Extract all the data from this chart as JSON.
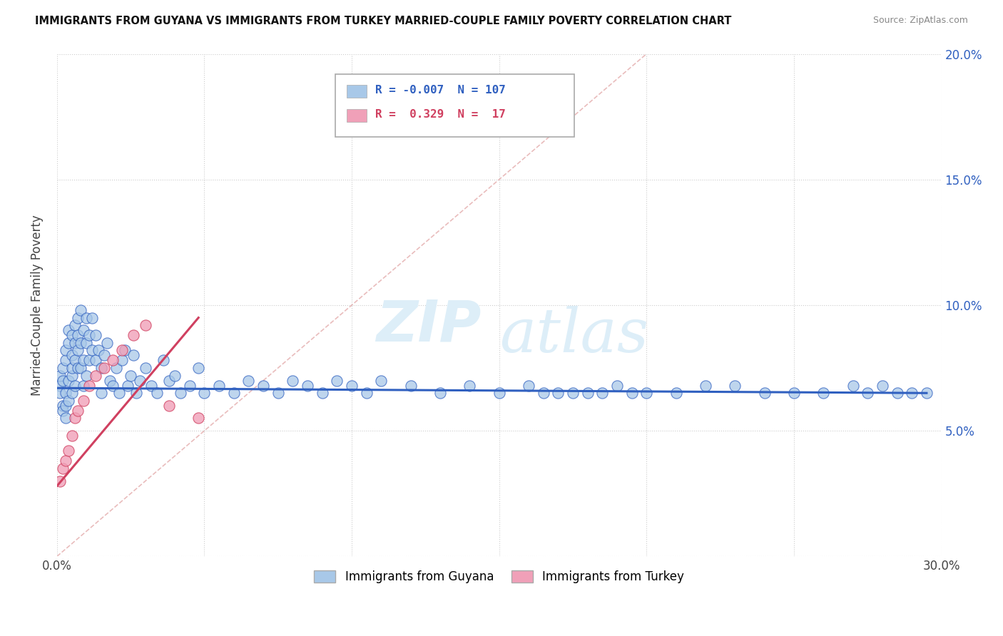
{
  "title": "IMMIGRANTS FROM GUYANA VS IMMIGRANTS FROM TURKEY MARRIED-COUPLE FAMILY POVERTY CORRELATION CHART",
  "source": "Source: ZipAtlas.com",
  "ylabel": "Married-Couple Family Poverty",
  "xlim": [
    0.0,
    0.3
  ],
  "ylim": [
    0.0,
    0.2
  ],
  "legend_guyana": "Immigrants from Guyana",
  "legend_turkey": "Immigrants from Turkey",
  "R_guyana": -0.007,
  "N_guyana": 107,
  "R_turkey": 0.329,
  "N_turkey": 17,
  "color_guyana": "#a8c8e8",
  "color_turkey": "#f0a0b8",
  "color_guyana_line": "#3060c0",
  "color_turkey_line": "#d04060",
  "color_diag": "#e0a0a0",
  "watermark_zip": "ZIP",
  "watermark_atlas": "atlas",
  "guyana_x": [
    0.001,
    0.001,
    0.001,
    0.002,
    0.002,
    0.002,
    0.002,
    0.003,
    0.003,
    0.003,
    0.003,
    0.003,
    0.004,
    0.004,
    0.004,
    0.004,
    0.005,
    0.005,
    0.005,
    0.005,
    0.005,
    0.006,
    0.006,
    0.006,
    0.006,
    0.007,
    0.007,
    0.007,
    0.007,
    0.008,
    0.008,
    0.008,
    0.009,
    0.009,
    0.009,
    0.01,
    0.01,
    0.01,
    0.011,
    0.011,
    0.012,
    0.012,
    0.013,
    0.013,
    0.014,
    0.015,
    0.015,
    0.016,
    0.017,
    0.018,
    0.019,
    0.02,
    0.021,
    0.022,
    0.023,
    0.024,
    0.025,
    0.026,
    0.027,
    0.028,
    0.03,
    0.032,
    0.034,
    0.036,
    0.038,
    0.04,
    0.042,
    0.045,
    0.048,
    0.05,
    0.055,
    0.06,
    0.065,
    0.07,
    0.075,
    0.08,
    0.085,
    0.09,
    0.095,
    0.1,
    0.105,
    0.11,
    0.12,
    0.13,
    0.14,
    0.15,
    0.16,
    0.17,
    0.18,
    0.19,
    0.2,
    0.21,
    0.22,
    0.23,
    0.24,
    0.25,
    0.26,
    0.27,
    0.275,
    0.28,
    0.285,
    0.29,
    0.295,
    0.165,
    0.175,
    0.185,
    0.195
  ],
  "guyana_y": [
    0.068,
    0.072,
    0.065,
    0.07,
    0.075,
    0.06,
    0.058,
    0.078,
    0.082,
    0.065,
    0.055,
    0.06,
    0.085,
    0.09,
    0.07,
    0.062,
    0.088,
    0.08,
    0.072,
    0.065,
    0.075,
    0.085,
    0.078,
    0.068,
    0.092,
    0.095,
    0.082,
    0.088,
    0.075,
    0.098,
    0.085,
    0.075,
    0.09,
    0.078,
    0.068,
    0.085,
    0.095,
    0.072,
    0.088,
    0.078,
    0.095,
    0.082,
    0.088,
    0.078,
    0.082,
    0.065,
    0.075,
    0.08,
    0.085,
    0.07,
    0.068,
    0.075,
    0.065,
    0.078,
    0.082,
    0.068,
    0.072,
    0.08,
    0.065,
    0.07,
    0.075,
    0.068,
    0.065,
    0.078,
    0.07,
    0.072,
    0.065,
    0.068,
    0.075,
    0.065,
    0.068,
    0.065,
    0.07,
    0.068,
    0.065,
    0.07,
    0.068,
    0.065,
    0.07,
    0.068,
    0.065,
    0.07,
    0.068,
    0.065,
    0.068,
    0.065,
    0.068,
    0.065,
    0.065,
    0.068,
    0.065,
    0.065,
    0.068,
    0.068,
    0.065,
    0.065,
    0.065,
    0.068,
    0.065,
    0.068,
    0.065,
    0.065,
    0.065,
    0.065,
    0.065,
    0.065,
    0.065
  ],
  "turkey_x": [
    0.001,
    0.002,
    0.003,
    0.004,
    0.005,
    0.006,
    0.007,
    0.009,
    0.011,
    0.013,
    0.016,
    0.019,
    0.022,
    0.026,
    0.03,
    0.038,
    0.048
  ],
  "turkey_y": [
    0.03,
    0.035,
    0.038,
    0.042,
    0.048,
    0.055,
    0.058,
    0.062,
    0.068,
    0.072,
    0.075,
    0.078,
    0.082,
    0.088,
    0.092,
    0.06,
    0.055
  ],
  "guyana_line_x": [
    0.0,
    0.295
  ],
  "guyana_line_y": [
    0.067,
    0.065
  ],
  "turkey_line_x": [
    0.0,
    0.048
  ],
  "turkey_line_y": [
    0.028,
    0.095
  ]
}
